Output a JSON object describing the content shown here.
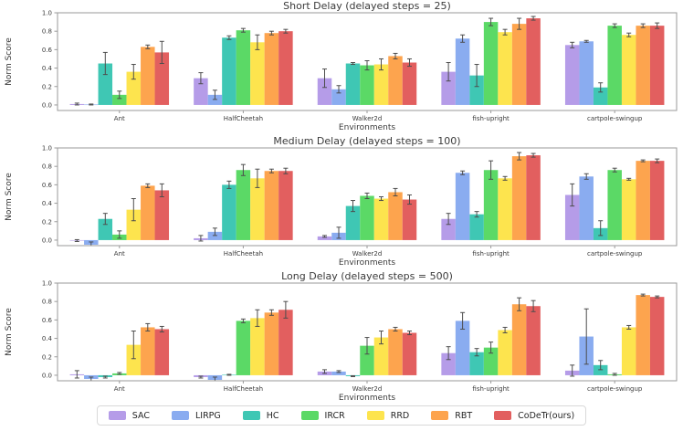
{
  "figure": {
    "background": "#ffffff",
    "error_bar_color": "#4d4d4d",
    "spine_color": "#9a9a9a",
    "title_color": "#262626"
  },
  "legend": {
    "entries": [
      {
        "label": "SAC",
        "color": "#b59ce8"
      },
      {
        "label": "LIRPG",
        "color": "#8aacf0"
      },
      {
        "label": "HC",
        "color": "#3fc7b4"
      },
      {
        "label": "IRCR",
        "color": "#5bd966"
      },
      {
        "label": "RRD",
        "color": "#fde44e"
      },
      {
        "label": "RBT",
        "color": "#fda44e"
      },
      {
        "label": "CoDeTr(ours)",
        "color": "#e25f5f"
      }
    ]
  },
  "chart_data": [
    {
      "type": "bar",
      "title": "Short Delay (delayed steps = 25)",
      "xlabel": "Environments",
      "ylabel": "Norm Score",
      "ylim": [
        -0.06,
        1.0
      ],
      "yticks": [
        0.0,
        0.2,
        0.4,
        0.6,
        0.8,
        1.0
      ],
      "grid": false,
      "legend_position": "below-figure",
      "categories": [
        "Ant",
        "HalfCheetah",
        "Walker2d",
        "fish-upright",
        "cartpole-swingup"
      ],
      "series": [
        {
          "name": "SAC",
          "values": [
            0.01,
            0.29,
            0.29,
            0.36,
            0.65
          ],
          "errors": [
            0.01,
            0.06,
            0.1,
            0.1,
            0.03
          ]
        },
        {
          "name": "LIRPG",
          "values": [
            0.005,
            0.11,
            0.17,
            0.72,
            0.69
          ],
          "errors": [
            0.005,
            0.05,
            0.04,
            0.04,
            0.01
          ]
        },
        {
          "name": "HC",
          "values": [
            0.45,
            0.73,
            0.45,
            0.32,
            0.19
          ],
          "errors": [
            0.12,
            0.02,
            0.01,
            0.12,
            0.05
          ]
        },
        {
          "name": "IRCR",
          "values": [
            0.11,
            0.81,
            0.43,
            0.9,
            0.86
          ],
          "errors": [
            0.04,
            0.02,
            0.05,
            0.04,
            0.02
          ]
        },
        {
          "name": "RRD",
          "values": [
            0.36,
            0.68,
            0.44,
            0.79,
            0.76
          ],
          "errors": [
            0.08,
            0.08,
            0.06,
            0.03,
            0.02
          ]
        },
        {
          "name": "RBT",
          "values": [
            0.63,
            0.78,
            0.53,
            0.88,
            0.86
          ],
          "errors": [
            0.02,
            0.02,
            0.03,
            0.06,
            0.02
          ]
        },
        {
          "name": "CoDeTr(ours)",
          "values": [
            0.57,
            0.8,
            0.46,
            0.94,
            0.86
          ],
          "errors": [
            0.12,
            0.02,
            0.04,
            0.02,
            0.03
          ]
        }
      ]
    },
    {
      "type": "bar",
      "title": "Medium Delay (delayed steps = 100)",
      "xlabel": "Environments",
      "ylabel": "Norm Score",
      "ylim": [
        -0.06,
        1.0
      ],
      "yticks": [
        0.0,
        0.2,
        0.4,
        0.6,
        0.8,
        1.0
      ],
      "grid": false,
      "legend_position": "below-figure",
      "categories": [
        "Ant",
        "HalfCheetah",
        "Walker2d",
        "fish-upright",
        "cartpole-swingup"
      ],
      "series": [
        {
          "name": "SAC",
          "values": [
            -0.005,
            0.02,
            0.04,
            0.23,
            0.49
          ],
          "errors": [
            0.01,
            0.03,
            0.01,
            0.06,
            0.12
          ]
        },
        {
          "name": "LIRPG",
          "values": [
            -0.05,
            0.09,
            0.08,
            0.73,
            0.69
          ],
          "errors": [
            0.03,
            0.04,
            0.06,
            0.02,
            0.03
          ]
        },
        {
          "name": "HC",
          "values": [
            0.23,
            0.6,
            0.37,
            0.28,
            0.13
          ],
          "errors": [
            0.06,
            0.04,
            0.06,
            0.03,
            0.08
          ]
        },
        {
          "name": "IRCR",
          "values": [
            0.06,
            0.76,
            0.48,
            0.76,
            0.76
          ],
          "errors": [
            0.04,
            0.06,
            0.03,
            0.1,
            0.02
          ]
        },
        {
          "name": "RRD",
          "values": [
            0.33,
            0.67,
            0.45,
            0.67,
            0.66
          ],
          "errors": [
            0.12,
            0.1,
            0.02,
            0.02,
            0.01
          ]
        },
        {
          "name": "RBT",
          "values": [
            0.59,
            0.75,
            0.52,
            0.91,
            0.86
          ],
          "errors": [
            0.02,
            0.02,
            0.04,
            0.04,
            0.01
          ]
        },
        {
          "name": "CoDeTr(ours)",
          "values": [
            0.54,
            0.75,
            0.44,
            0.92,
            0.86
          ],
          "errors": [
            0.07,
            0.03,
            0.05,
            0.02,
            0.02
          ]
        }
      ]
    },
    {
      "type": "bar",
      "title": "Long Delay (delayed steps = 500)",
      "xlabel": "Environments",
      "ylabel": "Norm Score",
      "ylim": [
        -0.06,
        1.0
      ],
      "yticks": [
        0.0,
        0.2,
        0.4,
        0.6,
        0.8,
        1.0
      ],
      "grid": false,
      "legend_position": "below-figure",
      "categories": [
        "Ant",
        "HalfCheetah",
        "Walker2d",
        "fish-upright",
        "cartpole-swingup"
      ],
      "series": [
        {
          "name": "SAC",
          "values": [
            0.01,
            -0.02,
            0.04,
            0.24,
            0.05
          ],
          "errors": [
            0.04,
            0.01,
            0.02,
            0.07,
            0.06
          ]
        },
        {
          "name": "LIRPG",
          "values": [
            -0.04,
            -0.05,
            0.04,
            0.59,
            0.42
          ],
          "errors": [
            0.02,
            0.03,
            0.01,
            0.09,
            0.3
          ]
        },
        {
          "name": "HC",
          "values": [
            -0.02,
            0.005,
            -0.01,
            0.25,
            0.11
          ],
          "errors": [
            0.01,
            0.005,
            0.005,
            0.04,
            0.05
          ]
        },
        {
          "name": "IRCR",
          "values": [
            0.02,
            0.59,
            0.32,
            0.3,
            0.01
          ],
          "errors": [
            0.01,
            0.02,
            0.09,
            0.06,
            0.01
          ]
        },
        {
          "name": "RRD",
          "values": [
            0.33,
            0.62,
            0.41,
            0.49,
            0.52
          ],
          "errors": [
            0.15,
            0.09,
            0.07,
            0.03,
            0.02
          ]
        },
        {
          "name": "RBT",
          "values": [
            0.52,
            0.68,
            0.5,
            0.77,
            0.87
          ],
          "errors": [
            0.04,
            0.03,
            0.02,
            0.07,
            0.01
          ]
        },
        {
          "name": "CoDeTr(ours)",
          "values": [
            0.5,
            0.71,
            0.46,
            0.75,
            0.85
          ],
          "errors": [
            0.03,
            0.09,
            0.02,
            0.06,
            0.01
          ]
        }
      ]
    }
  ]
}
